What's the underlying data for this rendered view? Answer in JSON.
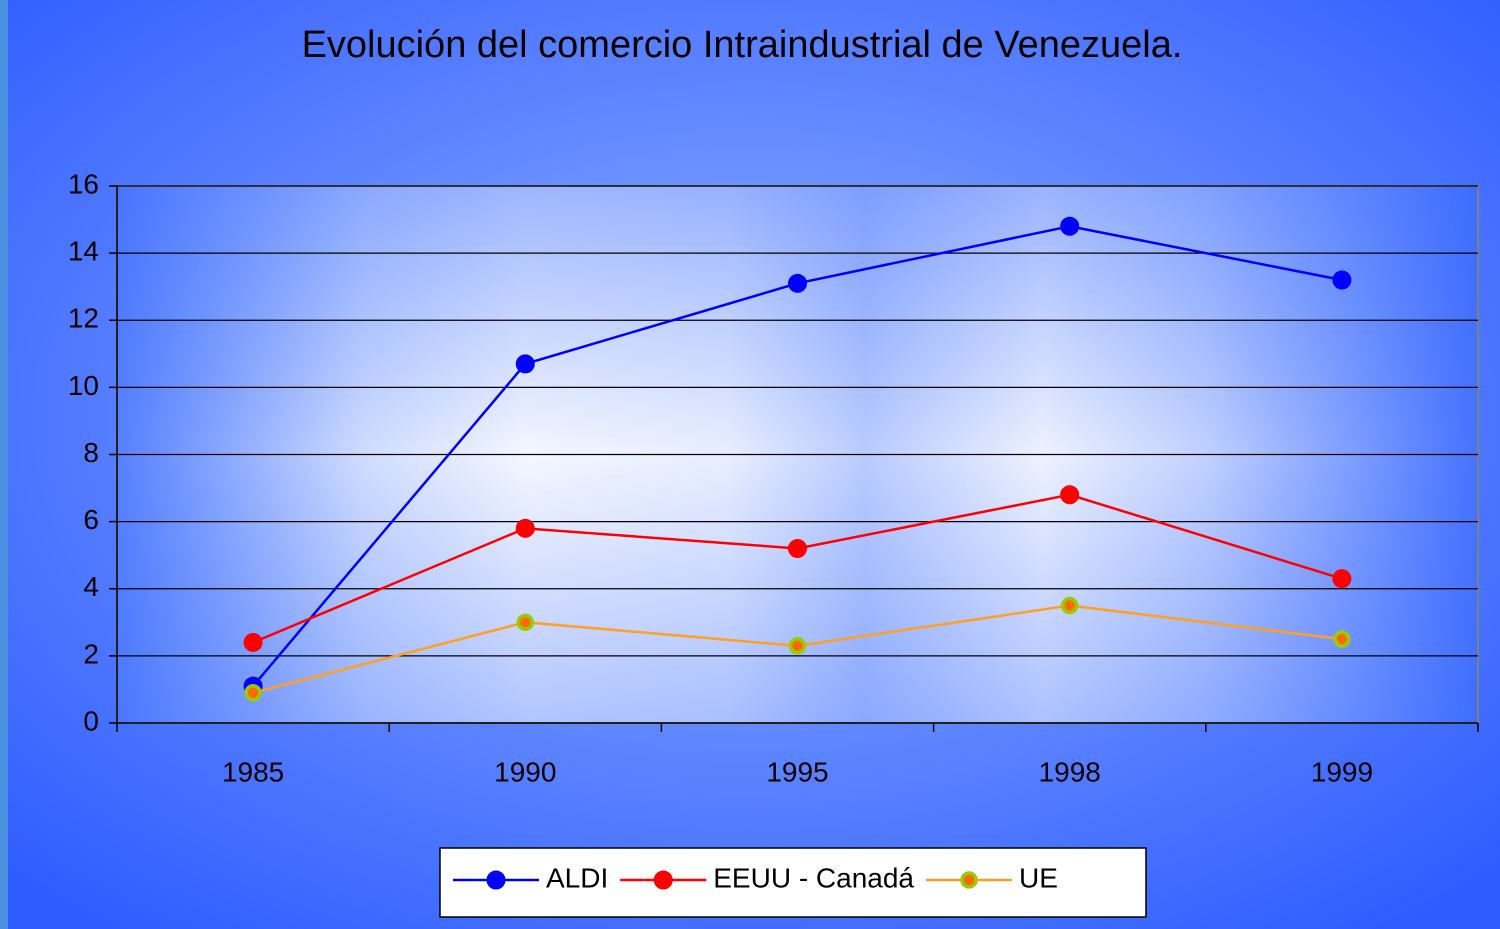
{
  "chart_data": {
    "type": "line",
    "title": "Evolución del comercio Intraindustrial de Venezuela.",
    "categories": [
      "1985",
      "1990",
      "1995",
      "1998",
      "1999"
    ],
    "series": [
      {
        "name": "ALDI",
        "color": "#0000ff",
        "values": [
          1.1,
          10.7,
          13.1,
          14.8,
          13.2
        ]
      },
      {
        "name": "EEUU - Canadá",
        "color": "#ff0000",
        "values": [
          2.4,
          5.8,
          5.2,
          6.8,
          4.3
        ]
      },
      {
        "name": "UE",
        "color": "#ffa020",
        "marker_fill": "#ff6a00",
        "marker_edge": "#99cc00",
        "values": [
          0.9,
          3.0,
          2.3,
          3.5,
          2.5
        ]
      }
    ],
    "ylim": [
      0,
      16
    ],
    "yticks": [
      0,
      2,
      4,
      6,
      8,
      10,
      12,
      14,
      16
    ],
    "grid": true,
    "legend": "bottom"
  }
}
